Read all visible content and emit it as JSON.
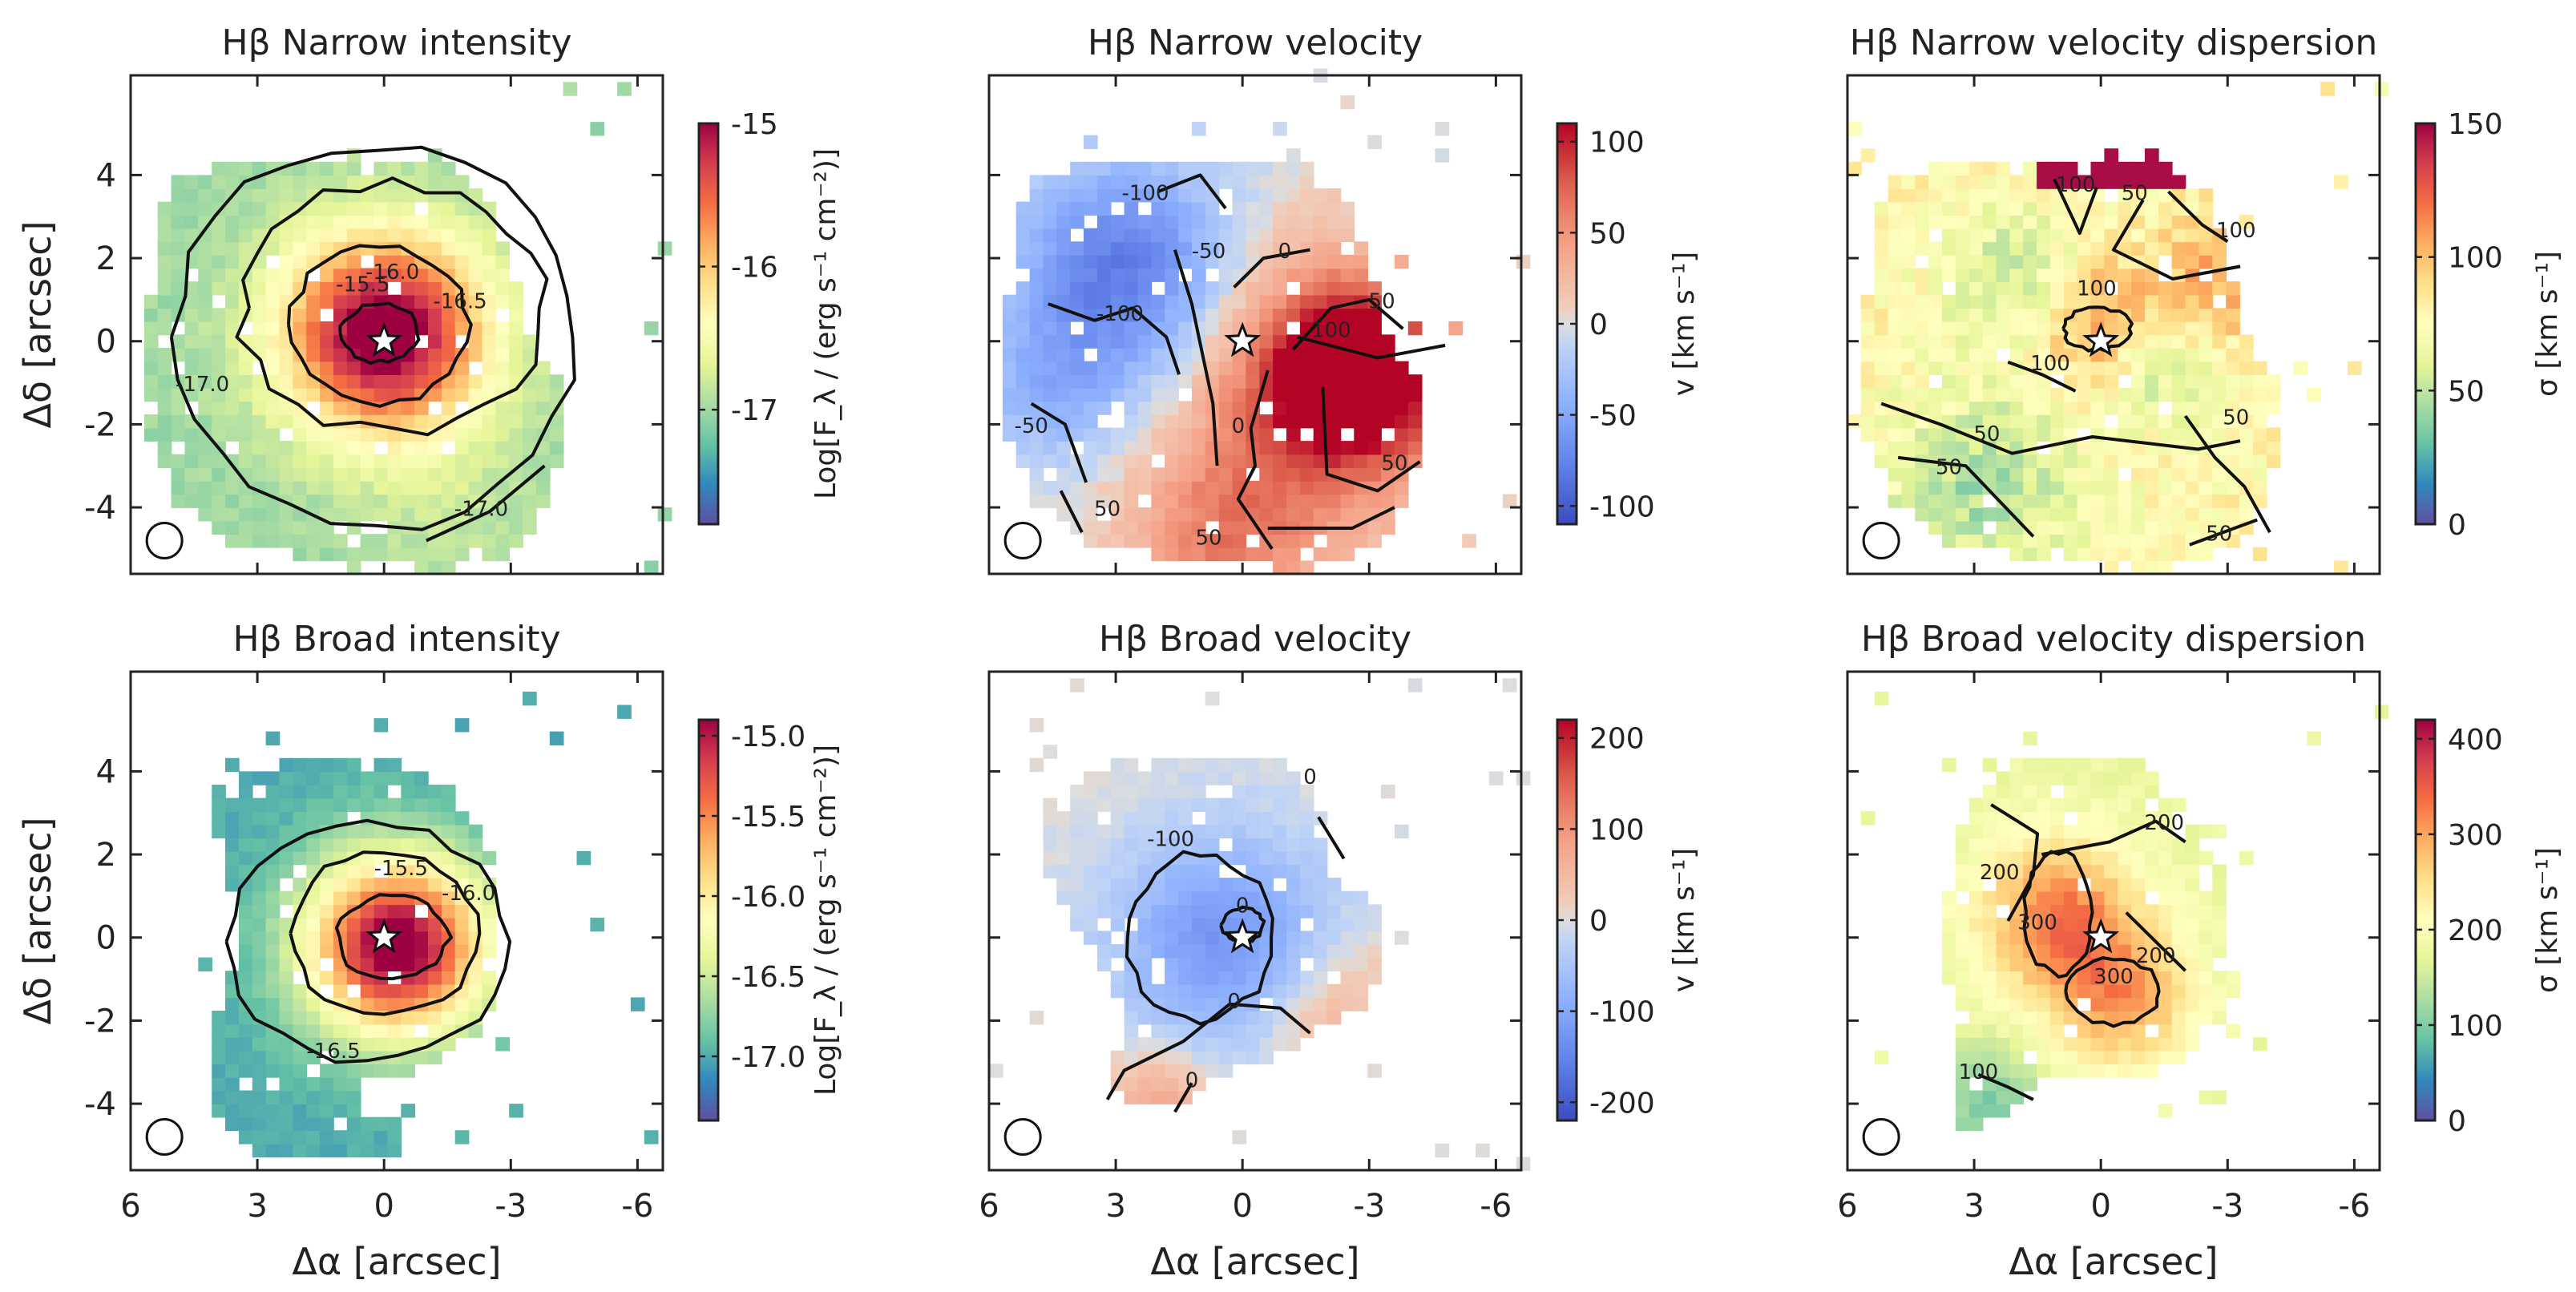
{
  "chart_data": [
    {
      "type": "heatmap",
      "title": "Hβ Narrow intensity",
      "xlabel": "",
      "ylabel": "Δδ [arcsec]",
      "xlim": [
        6.0,
        -6.6
      ],
      "ylim": [
        -5.6,
        6.4
      ],
      "xticks": [
        "6",
        "3",
        "0",
        "-3",
        "-6"
      ],
      "yticks": [
        "-4",
        "-2",
        "0",
        "2",
        "4"
      ],
      "colormap": "Spectral_r",
      "colorbar": {
        "label": "Log[F_λ / (erg s⁻¹ cm⁻²)]",
        "min": -17.8,
        "max": -15.0,
        "ticks": [
          "-15",
          "-16",
          "-17"
        ]
      },
      "peak": [
        0.0,
        0.2
      ],
      "peak_value": -15.0,
      "edge_value": -17.5,
      "contours": [
        "-15.5",
        "-16.0",
        "-16.5",
        "-17.0",
        "-17.0"
      ],
      "marker": "star at (0, 0)",
      "beam": "circle, lower left"
    },
    {
      "type": "heatmap",
      "title": "Hβ Narrow velocity",
      "xlabel": "",
      "ylabel": "",
      "xlim": [
        6.0,
        -6.6
      ],
      "ylim": [
        -5.6,
        6.4
      ],
      "xticks": [
        "6",
        "3",
        "0",
        "-3",
        "-6"
      ],
      "yticks": [
        "-4",
        "-2",
        "0",
        "2",
        "4"
      ],
      "colormap": "coolwarm",
      "colorbar": {
        "label": "v [km s⁻¹]",
        "min": -110,
        "max": 110,
        "ticks": [
          "100",
          "50",
          "0",
          "-50",
          "-100"
        ]
      },
      "contours": [
        "-100",
        "-100",
        "-50",
        "-50",
        "0",
        "0",
        "50",
        "50",
        "50",
        "100",
        "50"
      ],
      "marker": "star at (0, 0)",
      "beam": "circle, lower left"
    },
    {
      "type": "heatmap",
      "title": "Hβ Narrow velocity dispersion",
      "xlabel": "",
      "ylabel": "",
      "xlim": [
        6.0,
        -6.6
      ],
      "ylim": [
        -5.6,
        6.4
      ],
      "xticks": [
        "6",
        "3",
        "0",
        "-3",
        "-6"
      ],
      "yticks": [
        "-4",
        "-2",
        "0",
        "2",
        "4"
      ],
      "colormap": "Spectral_r",
      "colorbar": {
        "label": "σ [km s⁻¹]",
        "min": 0,
        "max": 150,
        "ticks": [
          "150",
          "100",
          "50",
          "0"
        ]
      },
      "contours": [
        "100",
        "100",
        "100",
        "100",
        "50",
        "50",
        "50",
        "50",
        "50"
      ],
      "marker": "star at (0, 0)",
      "beam": "circle, lower left"
    },
    {
      "type": "heatmap",
      "title": "Hβ Broad intensity",
      "xlabel": "Δα [arcsec]",
      "ylabel": "Δδ [arcsec]",
      "xlim": [
        6.0,
        -6.6
      ],
      "ylim": [
        -5.6,
        6.4
      ],
      "xticks": [
        "6",
        "3",
        "0",
        "-3",
        "-6"
      ],
      "yticks": [
        "-4",
        "-2",
        "0",
        "2",
        "4"
      ],
      "colormap": "Spectral_r",
      "colorbar": {
        "label": "Log[F_λ / (erg s⁻¹ cm⁻²)]",
        "min": -17.4,
        "max": -14.9,
        "ticks": [
          "-15.0",
          "-15.5",
          "-16.0",
          "-16.5",
          "-17.0"
        ]
      },
      "peak": [
        0.0,
        0.0
      ],
      "peak_value": -15.0,
      "edge_value": -17.0,
      "contours": [
        "-15.5",
        "-16.0",
        "-16.5"
      ],
      "marker": "star at (0, 0)",
      "beam": "circle, lower left"
    },
    {
      "type": "heatmap",
      "title": "Hβ Broad velocity",
      "xlabel": "Δα [arcsec]",
      "ylabel": "",
      "xlim": [
        6.0,
        -6.6
      ],
      "ylim": [
        -5.6,
        6.4
      ],
      "xticks": [
        "6",
        "3",
        "0",
        "-3",
        "-6"
      ],
      "yticks": [
        "-4",
        "-2",
        "0",
        "2",
        "4"
      ],
      "colormap": "coolwarm",
      "colorbar": {
        "label": "v [km s⁻¹]",
        "min": -220,
        "max": 220,
        "ticks": [
          "200",
          "100",
          "0",
          "-100",
          "-200"
        ]
      },
      "contours": [
        "-100",
        "0",
        "0",
        "0",
        "0"
      ],
      "marker": "star at (0, 0)",
      "beam": "circle, lower left"
    },
    {
      "type": "heatmap",
      "title": "Hβ Broad velocity dispersion",
      "xlabel": "Δα [arcsec]",
      "ylabel": "",
      "xlim": [
        6.0,
        -6.6
      ],
      "ylim": [
        -5.6,
        6.4
      ],
      "xticks": [
        "6",
        "3",
        "0",
        "-3",
        "-6"
      ],
      "yticks": [
        "-4",
        "-2",
        "0",
        "2",
        "4"
      ],
      "colormap": "Spectral_r",
      "colorbar": {
        "label": "σ [km s⁻¹]",
        "min": 0,
        "max": 420,
        "ticks": [
          "400",
          "300",
          "200",
          "100",
          "0"
        ]
      },
      "contours": [
        "200",
        "200",
        "200",
        "300",
        "300",
        "100"
      ],
      "marker": "star at (0, 0)",
      "beam": "circle, lower left"
    }
  ]
}
